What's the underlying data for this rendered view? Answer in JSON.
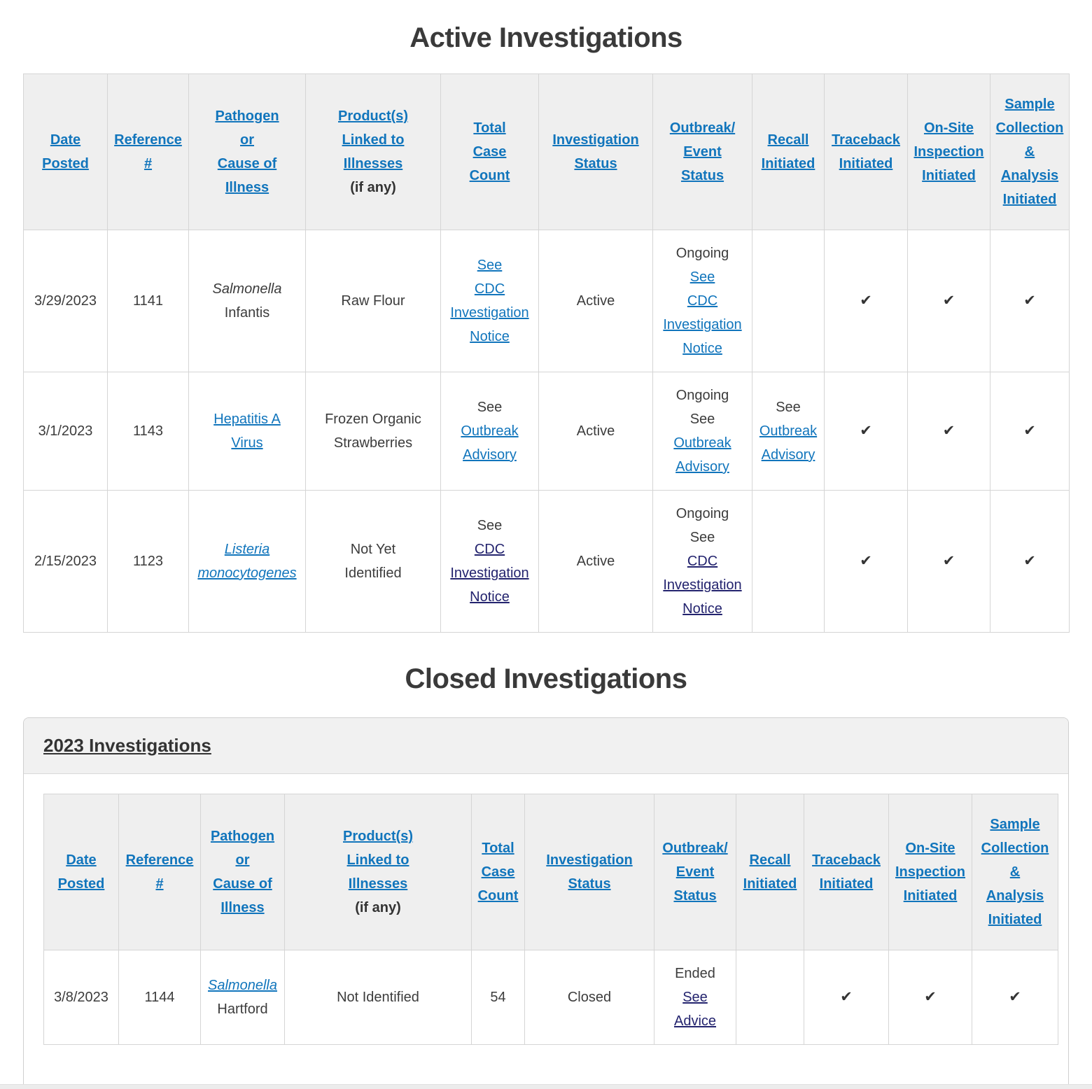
{
  "page": {
    "active_title": "Active Investigations",
    "closed_title": "Closed Investigations",
    "closed_group_title": "2023 Investigations"
  },
  "colors": {
    "link_blue": "#1175bc",
    "link_visited_navy": "#23236e",
    "header_bg": "#efefef",
    "title_color": "#3a3a3a",
    "table_border": "#d5d5d5"
  },
  "check_glyph": "✔",
  "columns": [
    {
      "key": "date-posted",
      "lines": [
        "Date",
        "Posted"
      ]
    },
    {
      "key": "reference-number",
      "lines": [
        "Reference",
        "#"
      ]
    },
    {
      "key": "pathogen-or-cause",
      "lines": [
        "Pathogen",
        "or",
        "Cause of",
        "Illness"
      ]
    },
    {
      "key": "products-linked",
      "lines": [
        "Product(s)",
        "Linked to",
        "Illnesses"
      ],
      "suffix": "(if any)"
    },
    {
      "key": "total-case-count",
      "lines": [
        "Total",
        "Case",
        "Count"
      ]
    },
    {
      "key": "investigation-status",
      "lines": [
        "Investigation",
        "Status"
      ]
    },
    {
      "key": "outbreak-event-status",
      "lines": [
        "Outbreak/",
        "Event",
        "Status"
      ]
    },
    {
      "key": "recall-initiated",
      "lines": [
        "Recall",
        "Initiated"
      ]
    },
    {
      "key": "traceback-initiated",
      "lines": [
        "Traceback",
        "Initiated"
      ]
    },
    {
      "key": "onsite-inspection-initiated",
      "lines": [
        "On-Site",
        "Inspection",
        "Initiated"
      ]
    },
    {
      "key": "sample-collection-initiated",
      "lines": [
        "Sample",
        "Collection",
        "&",
        "Analysis",
        "Initiated"
      ]
    }
  ],
  "active_table": {
    "rows": [
      {
        "date": "3/29/2023",
        "ref": "1141",
        "pathogen": [
          {
            "t": "Salmonella",
            "italic": true
          },
          {
            "t": "\nInfantis"
          }
        ],
        "product": [
          {
            "t": "Raw Flour"
          }
        ],
        "case_count": [
          {
            "t": "See\nCDC\nInvestigation\nNotice",
            "link": true
          }
        ],
        "status": [
          {
            "t": "Active"
          }
        ],
        "outbreak": [
          {
            "t": "Ongoing\n"
          },
          {
            "t": "See\nCDC\nInvestigation\nNotice",
            "link": true
          }
        ],
        "recall": [],
        "traceback_check": true,
        "onsite_check": true,
        "sample_check": true
      },
      {
        "date": "3/1/2023",
        "ref": "1143",
        "pathogen": [
          {
            "t": "Hepatitis A\nVirus",
            "link": true
          }
        ],
        "product": [
          {
            "t": "Frozen Organic\nStrawberries"
          }
        ],
        "case_count": [
          {
            "t": "See\n"
          },
          {
            "t": "Outbreak\nAdvisory",
            "link": true
          }
        ],
        "status": [
          {
            "t": "Active"
          }
        ],
        "outbreak": [
          {
            "t": "Ongoing\nSee\n"
          },
          {
            "t": "Outbreak\nAdvisory",
            "link": true
          }
        ],
        "recall": [
          {
            "t": "See\n"
          },
          {
            "t": "Outbreak\nAdvisory",
            "link": true
          }
        ],
        "traceback_check": true,
        "onsite_check": true,
        "sample_check": true
      },
      {
        "date": "2/15/2023",
        "ref": "1123",
        "pathogen": [
          {
            "t": "Listeria\nmonocytogenes",
            "link": true,
            "italic": true
          }
        ],
        "product": [
          {
            "t": "Not Yet\nIdentified"
          }
        ],
        "case_count": [
          {
            "t": "See\n"
          },
          {
            "t": "CDC\nInvestigation\nNotice",
            "link": true,
            "visited": true
          }
        ],
        "status": [
          {
            "t": "Active"
          }
        ],
        "outbreak": [
          {
            "t": "Ongoing\nSee\n"
          },
          {
            "t": "CDC\nInvestigation\nNotice",
            "link": true,
            "visited": true
          }
        ],
        "recall": [],
        "traceback_check": true,
        "onsite_check": true,
        "sample_check": true
      }
    ]
  },
  "closed_table": {
    "rows": [
      {
        "date": "3/8/2023",
        "ref": "1144",
        "pathogen": [
          {
            "t": "Salmonella",
            "link": true,
            "italic": true
          },
          {
            "t": "\nHartford"
          }
        ],
        "product": [
          {
            "t": "Not Identified"
          }
        ],
        "case_count": [
          {
            "t": "54"
          }
        ],
        "status": [
          {
            "t": "Closed"
          }
        ],
        "outbreak": [
          {
            "t": "Ended\n"
          },
          {
            "t": "See\nAdvice",
            "link": true,
            "visited": true
          }
        ],
        "recall": [],
        "traceback_check": true,
        "onsite_check": true,
        "sample_check": true
      }
    ]
  }
}
